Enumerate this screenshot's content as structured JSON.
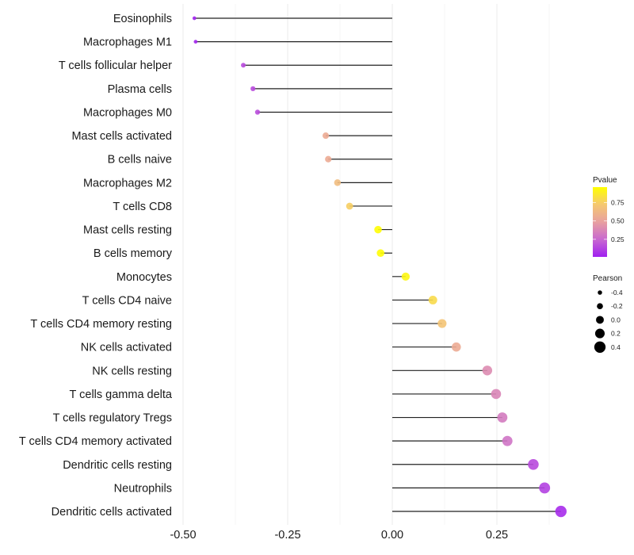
{
  "chart_data": {
    "type": "lollipop",
    "title": "",
    "xlabel": "",
    "ylabel": "",
    "xlim": [
      -0.5,
      0.42
    ],
    "x_ticks": [
      -0.5,
      -0.25,
      0.0,
      0.25
    ],
    "x_tick_labels": [
      "-0.50",
      "-0.25",
      "0.00",
      "0.25"
    ],
    "grid": true,
    "legend_position": "right",
    "categories": [
      "Eosinophils",
      "Macrophages M1",
      "T cells follicular helper",
      "Plasma cells",
      "Macrophages M0",
      "Mast cells activated",
      "B cells naive",
      "Macrophages M2",
      "T cells CD8",
      "Mast cells resting",
      "B cells memory",
      "Monocytes",
      "T cells CD4 naive",
      "T cells CD4 memory resting",
      "NK cells activated",
      "NK cells resting",
      "T cells gamma delta",
      "T cells regulatory  Tregs ",
      "T cells CD4 memory activated",
      "Dendritic cells resting",
      "Neutrophils",
      "Dendritic cells activated"
    ],
    "pearson": [
      -0.473,
      -0.47,
      -0.356,
      -0.333,
      -0.322,
      -0.159,
      -0.153,
      -0.131,
      -0.102,
      -0.034,
      -0.028,
      0.032,
      0.097,
      0.119,
      0.153,
      0.227,
      0.248,
      0.263,
      0.275,
      0.337,
      0.364,
      0.403
    ],
    "pvalue": [
      0.02,
      0.03,
      0.15,
      0.15,
      0.16,
      0.55,
      0.55,
      0.65,
      0.75,
      0.95,
      0.95,
      0.92,
      0.8,
      0.7,
      0.55,
      0.4,
      0.37,
      0.33,
      0.3,
      0.15,
      0.12,
      0.05
    ],
    "color_legend": {
      "title": "Pvalue",
      "range": [
        0.01,
        0.96
      ],
      "ticks": [
        0.75,
        0.5,
        0.25
      ],
      "tick_labels": [
        "0.75",
        "0.50",
        "0.25"
      ],
      "colors": {
        "low": "#a020f0",
        "mid": "#e8a0a0",
        "high": "#ffff00"
      }
    },
    "size_legend": {
      "title": "Pearson",
      "values": [
        -0.4,
        -0.2,
        0.0,
        0.2,
        0.4
      ],
      "labels": [
        "-0.4",
        "-0.2",
        "0.0",
        "0.2",
        "0.4"
      ]
    }
  }
}
